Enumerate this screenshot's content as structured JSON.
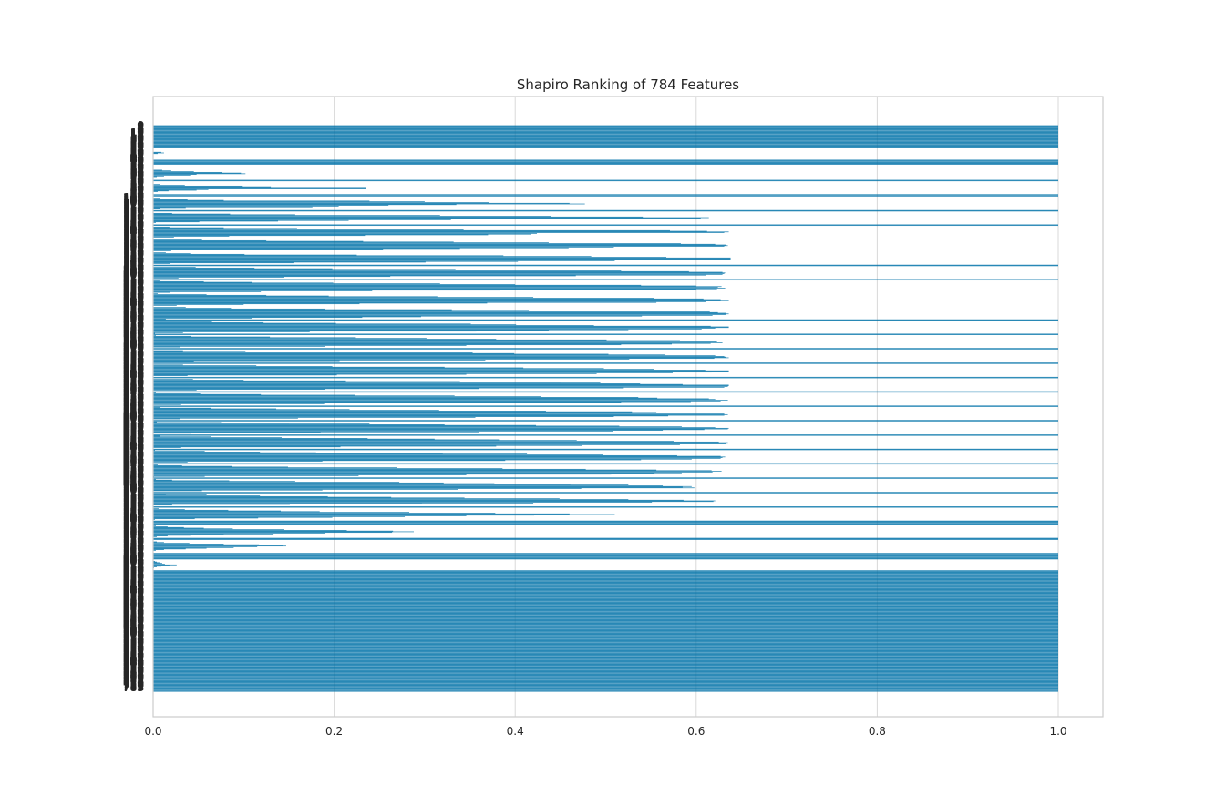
{
  "chart_data": {
    "type": "bar",
    "orientation": "horizontal",
    "title": "Shapiro Ranking of 784 Features",
    "xlabel": "",
    "ylabel": "",
    "xlim": [
      0.0,
      1.05
    ],
    "ylim": [
      -0.5,
      783.5
    ],
    "xticks": [
      "0.0",
      "0.2",
      "0.4",
      "0.6",
      "0.8",
      "1.0"
    ],
    "grid": true,
    "n_features": 784,
    "bar_color": "#0072a8",
    "first_ytick": "0",
    "last_ytick": "783",
    "values": [
      1,
      1,
      1,
      1,
      1,
      1,
      1,
      1,
      1,
      1,
      1,
      1,
      1,
      1,
      1,
      1,
      1,
      1,
      1,
      1,
      1,
      1,
      1,
      1,
      1,
      1,
      1,
      1,
      1,
      1,
      1,
      1,
      0,
      0,
      0,
      0,
      0,
      0.009,
      0.012,
      0.005,
      0,
      0,
      0,
      0,
      0,
      0,
      0,
      0,
      1,
      1,
      1,
      1,
      1,
      1,
      1,
      0,
      0,
      0,
      0,
      0,
      0,
      0,
      0.01,
      0.02,
      0.045,
      0.076,
      0.097,
      0.102,
      0.048,
      0.041,
      0.012,
      0.004,
      0,
      0,
      0,
      0,
      1,
      1,
      0,
      0,
      0,
      0,
      0.008,
      0.035,
      0.099,
      0.13,
      0.235,
      0.235,
      0.153,
      0.061,
      0.048,
      0.017,
      0.005,
      0,
      0,
      0,
      1,
      1,
      1,
      0,
      0,
      0.008,
      0.017,
      0.038,
      0.078,
      0.239,
      0.3,
      0.371,
      0.46,
      0.477,
      0.335,
      0.26,
      0.205,
      0.176,
      0.036,
      0.008,
      0,
      0,
      1,
      1,
      0,
      0,
      0.021,
      0.085,
      0.157,
      0.317,
      0.44,
      0.541,
      0.614,
      0.605,
      0.413,
      0.329,
      0.216,
      0.138,
      0.051,
      0.003,
      0,
      0,
      1,
      1,
      0,
      0.018,
      0.078,
      0.159,
      0.248,
      0.343,
      0.571,
      0.612,
      0.636,
      0.631,
      0.424,
      0.417,
      0.37,
      0.234,
      0.084,
      0.023,
      0,
      0,
      0.004,
      0.054,
      0.125,
      0.232,
      0.332,
      0.437,
      0.583,
      0.621,
      0.633,
      0.635,
      0.631,
      0.509,
      0.459,
      0.339,
      0.254,
      0.074,
      0.02,
      0,
      0,
      0.014,
      0.041,
      0.101,
      0.225,
      0.387,
      0.484,
      0.567,
      0.638,
      0.638,
      0.638,
      0.638,
      0.51,
      0.403,
      0.301,
      0.155,
      0.019,
      0,
      1,
      1,
      0,
      0.047,
      0.112,
      0.198,
      0.334,
      0.416,
      0.517,
      0.592,
      0.629,
      0.632,
      0.631,
      0.629,
      0.611,
      0.467,
      0.262,
      0.145,
      0.028,
      0,
      1,
      1,
      0.007,
      0.056,
      0.109,
      0.199,
      0.317,
      0.4,
      0.539,
      0.6,
      0.628,
      0.624,
      0.632,
      0.623,
      0.6,
      0.383,
      0.242,
      0.119,
      0.019,
      0,
      0.005,
      0.059,
      0.125,
      0.194,
      0.314,
      0.42,
      0.553,
      0.608,
      0.627,
      0.636,
      0.6,
      0.611,
      0.556,
      0.369,
      0.228,
      0.1,
      0.026,
      0,
      0,
      0.036,
      0.086,
      0.19,
      0.33,
      0.415,
      0.553,
      0.615,
      0.624,
      0.633,
      0.636,
      0.633,
      0.618,
      0.54,
      0.296,
      0.231,
      0.109,
      0.014,
      1,
      1,
      0.012,
      0.065,
      0.122,
      0.202,
      0.351,
      0.401,
      0.487,
      0.616,
      0.636,
      0.636,
      0.621,
      0.606,
      0.525,
      0.437,
      0.357,
      0.173,
      0.033,
      0.002,
      1,
      1,
      0.003,
      0.042,
      0.129,
      0.224,
      0.302,
      0.379,
      0.501,
      0.582,
      0.622,
      0.623,
      0.629,
      0.616,
      0.573,
      0.517,
      0.346,
      0.19,
      0.03,
      0,
      1,
      1,
      0,
      0.033,
      0.102,
      0.209,
      0.353,
      0.399,
      0.503,
      0.566,
      0.621,
      0.631,
      0.633,
      0.636,
      0.62,
      0.526,
      0.367,
      0.206,
      0.045,
      0,
      1,
      1,
      0,
      0.033,
      0.114,
      0.198,
      0.322,
      0.409,
      0.498,
      0.553,
      0.61,
      0.636,
      0.636,
      0.617,
      0.574,
      0.49,
      0.346,
      0.203,
      0.038,
      0,
      1,
      1,
      0,
      0.044,
      0.1,
      0.213,
      0.339,
      0.45,
      0.494,
      0.538,
      0.585,
      0.636,
      0.636,
      0.635,
      0.631,
      0.52,
      0.36,
      0.19,
      0.048,
      0,
      1,
      1,
      0.003,
      0.052,
      0.119,
      0.223,
      0.333,
      0.428,
      0.536,
      0.557,
      0.614,
      0.621,
      0.635,
      0.627,
      0.594,
      0.517,
      0.353,
      0.189,
      0.031,
      0,
      1,
      1,
      0.008,
      0.064,
      0.136,
      0.217,
      0.316,
      0.434,
      0.529,
      0.556,
      0.61,
      0.631,
      0.635,
      0.631,
      0.569,
      0.509,
      0.356,
      0.16,
      0.03,
      0,
      1,
      1,
      0.004,
      0.075,
      0.15,
      0.239,
      0.322,
      0.423,
      0.515,
      0.584,
      0.621,
      0.636,
      0.635,
      0.609,
      0.563,
      0.508,
      0.36,
      0.185,
      0.042,
      0,
      1,
      1,
      0.008,
      0.064,
      0.142,
      0.237,
      0.311,
      0.382,
      0.468,
      0.575,
      0.625,
      0.635,
      0.635,
      0.633,
      0.582,
      0.474,
      0.379,
      0.207,
      0.031,
      0,
      1,
      1,
      0.002,
      0.057,
      0.118,
      0.18,
      0.32,
      0.413,
      0.497,
      0.579,
      0.627,
      0.632,
      0.629,
      0.627,
      0.595,
      0.539,
      0.389,
      0.187,
      0.038,
      0,
      1,
      1,
      0.005,
      0.032,
      0.087,
      0.149,
      0.269,
      0.386,
      0.478,
      0.556,
      0.617,
      0.628,
      0.618,
      0.584,
      0.554,
      0.506,
      0.346,
      0.227,
      0.057,
      0.001,
      1,
      1,
      0.003,
      0.021,
      0.084,
      0.157,
      0.272,
      0.321,
      0.377,
      0.461,
      0.525,
      0.563,
      0.595,
      0.585,
      0.598,
      0.473,
      0.337,
      0.187,
      0.054,
      0,
      1,
      1,
      0,
      0.014,
      0.059,
      0.118,
      0.193,
      0.263,
      0.344,
      0.449,
      0.525,
      0.586,
      0.621,
      0.619,
      0.551,
      0.42,
      0.297,
      0.151,
      0.021,
      0,
      1,
      1,
      0,
      0.006,
      0.035,
      0.083,
      0.141,
      0.184,
      0.283,
      0.378,
      0.46,
      0.51,
      0.421,
      0.346,
      0.278,
      0.198,
      0.116,
      0.046,
      0.002,
      0,
      1,
      1,
      1,
      1,
      1,
      1,
      0,
      0.003,
      0.016,
      0.034,
      0.056,
      0.088,
      0.145,
      0.214,
      0.265,
      0.288,
      0.264,
      0.19,
      0.133,
      0.078,
      0.041,
      0.016,
      0.004,
      0,
      1,
      1,
      1,
      0,
      0,
      0.004,
      0.012,
      0.04,
      0.078,
      0.117,
      0.144,
      0.147,
      0.115,
      0.089,
      0.059,
      0.036,
      0.012,
      0.003,
      0,
      0,
      0,
      1,
      1,
      1,
      1,
      1,
      1,
      1,
      1,
      1,
      0,
      0,
      0.002,
      0.004,
      0.007,
      0.01,
      0.013,
      0.026,
      0.018,
      0.009,
      0.004,
      0.001,
      0,
      0,
      0,
      1,
      1,
      1,
      1,
      1,
      1,
      1,
      1,
      1,
      1,
      1,
      1,
      1,
      1,
      1,
      1,
      1,
      1,
      1,
      1,
      1,
      1,
      1,
      1,
      1,
      1,
      1,
      1,
      1,
      1,
      1,
      1,
      1,
      1,
      1,
      1,
      1,
      1,
      1,
      1,
      1,
      1,
      1,
      1,
      1,
      1,
      1,
      1,
      1,
      1,
      1,
      1,
      1,
      1,
      1,
      1,
      1,
      1,
      1,
      1,
      1,
      1,
      1,
      1,
      1,
      1,
      1,
      1,
      1,
      1,
      1,
      1,
      1,
      1,
      1,
      1,
      1,
      1,
      1,
      1,
      1,
      1,
      1,
      1,
      1,
      1,
      1,
      1,
      1,
      1,
      1,
      1,
      1,
      1,
      1,
      1,
      1,
      1,
      1,
      1,
      1,
      1,
      1,
      1,
      1,
      1,
      1,
      1,
      1,
      1,
      1,
      1,
      1,
      1,
      1,
      1,
      1,
      1,
      1,
      1,
      1,
      1,
      1,
      1,
      1,
      1,
      1,
      1,
      1,
      1,
      1,
      1,
      1,
      1,
      1,
      1,
      1,
      1,
      1,
      1,
      1,
      1,
      1,
      1,
      1,
      1,
      1,
      1,
      1,
      1,
      1,
      1,
      1,
      1,
      1,
      1,
      1,
      1,
      1,
      1,
      1,
      1,
      1,
      1,
      1,
      1,
      1,
      1,
      1
    ]
  }
}
